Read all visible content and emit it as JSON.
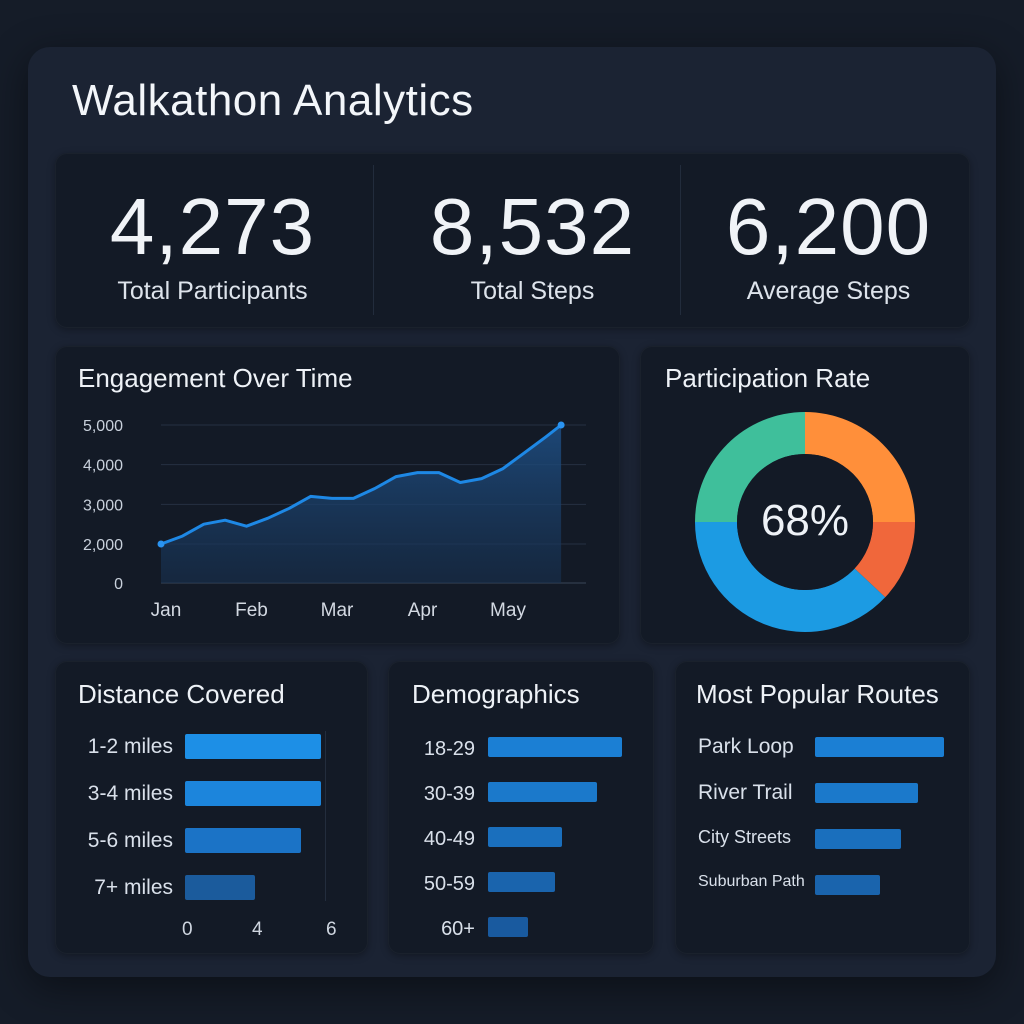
{
  "title": "Walkathon Analytics",
  "kpis": [
    {
      "value": "4,273",
      "label": "Total Participants"
    },
    {
      "value": "8,532",
      "label": "Total Steps"
    },
    {
      "value": "6,200",
      "label": "Average Steps"
    }
  ],
  "colors": {
    "accent": "#1e88e5",
    "teal": "#3fbf9b",
    "orange": "#ff8f3a",
    "red_orange": "#f0673b",
    "blue": "#1c9be3"
  },
  "chart_data": [
    {
      "type": "area",
      "title": "Engagement Over Time",
      "yticks": [
        "5,000",
        "4,000",
        "3,000",
        "2,000",
        "0"
      ],
      "ytick_values": [
        5000,
        4000,
        3000,
        2000,
        0
      ],
      "xticks": [
        "Jan",
        "Feb",
        "Mar",
        "Apr",
        "May"
      ],
      "ylim": [
        0,
        5000
      ],
      "series": [
        {
          "x": [
            0,
            0.25,
            0.5,
            0.75,
            1.0,
            1.25,
            1.5,
            1.75,
            2.0,
            2.25,
            2.5,
            2.75,
            3.0,
            3.25,
            3.5,
            3.75,
            4.0,
            4.25,
            4.5,
            4.68
          ],
          "y": [
            2000,
            2200,
            2500,
            2600,
            2450,
            2650,
            2900,
            3200,
            3150,
            3150,
            3400,
            3700,
            3800,
            3800,
            3550,
            3650,
            3900,
            4300,
            4700,
            5000
          ]
        }
      ],
      "grid": true
    },
    {
      "type": "pie",
      "title": "Participation Rate",
      "center_label": "68%",
      "slices": [
        {
          "value": 25,
          "color": "#ff8f3a"
        },
        {
          "value": 12,
          "color": "#f0673b"
        },
        {
          "value": 38,
          "color": "#1c9be3"
        },
        {
          "value": 25,
          "color": "#3fbf9b"
        }
      ]
    },
    {
      "type": "bar",
      "title": "Distance Covered",
      "categories": [
        "1-2 miles",
        "3-4 miles",
        "5-6 miles",
        "7+ miles"
      ],
      "values": [
        6.0,
        6.0,
        5.1,
        3.1
      ],
      "xticks": [
        "0",
        "4",
        "6"
      ],
      "xtick_values": [
        0,
        4,
        6
      ],
      "xlim": [
        0,
        6
      ]
    },
    {
      "type": "bar",
      "title": "Demographics",
      "categories": [
        "18-29",
        "30-39",
        "40-49",
        "50-59",
        "60+"
      ],
      "values": [
        100,
        81,
        55,
        50,
        30
      ]
    },
    {
      "type": "bar",
      "title": "Most Popular Routes",
      "categories": [
        "Park Loop",
        "River Trail",
        "City Streets",
        "Suburban Path"
      ],
      "values": [
        100,
        80,
        67,
        50
      ]
    }
  ]
}
